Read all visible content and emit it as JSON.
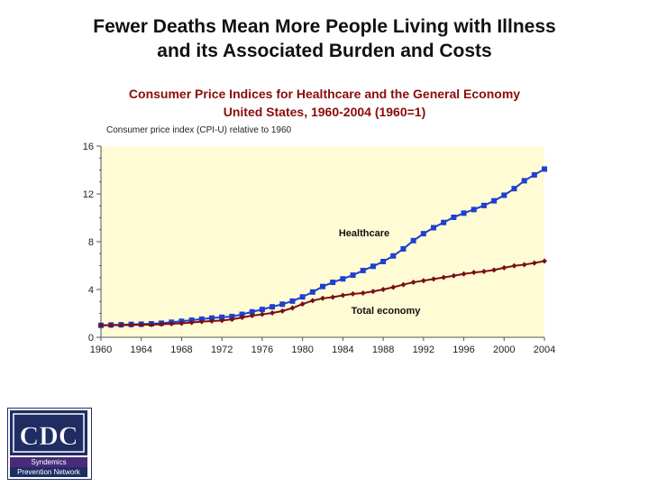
{
  "slide": {
    "title_line1": "Fewer Deaths Mean More People Living with Illness",
    "title_line2": "and its Associated Burden and Costs"
  },
  "chart_data": {
    "type": "line",
    "title_line1": "Consumer Price Indices for Healthcare and the General Economy",
    "title_line2": "United States, 1960-2004 (1960=1)",
    "ylabel": "Consumer price index (CPI-U) relative to 1960",
    "xlabel": "",
    "xlim": [
      1960,
      2004
    ],
    "ylim": [
      0,
      16
    ],
    "yticks": [
      0,
      4,
      8,
      12,
      16
    ],
    "xticks": [
      1960,
      1964,
      1968,
      1972,
      1976,
      1980,
      1984,
      1988,
      1992,
      1996,
      2000,
      2004
    ],
    "x": [
      1960,
      1961,
      1962,
      1963,
      1964,
      1965,
      1966,
      1967,
      1968,
      1969,
      1970,
      1971,
      1972,
      1973,
      1974,
      1975,
      1976,
      1977,
      1978,
      1979,
      1980,
      1981,
      1982,
      1983,
      1984,
      1985,
      1986,
      1987,
      1988,
      1989,
      1990,
      1991,
      1992,
      1993,
      1994,
      1995,
      1996,
      1997,
      1998,
      1999,
      2000,
      2001,
      2002,
      2003,
      2004
    ],
    "series": [
      {
        "name": "Healthcare",
        "color": "#1f3fcf",
        "values": [
          1.0,
          1.03,
          1.05,
          1.08,
          1.1,
          1.13,
          1.18,
          1.26,
          1.34,
          1.43,
          1.52,
          1.61,
          1.68,
          1.74,
          1.92,
          2.13,
          2.33,
          2.55,
          2.77,
          3.03,
          3.38,
          3.79,
          4.25,
          4.6,
          4.89,
          5.2,
          5.59,
          5.94,
          6.34,
          6.81,
          7.4,
          8.09,
          8.67,
          9.17,
          9.61,
          10.04,
          10.39,
          10.69,
          11.03,
          11.42,
          11.89,
          12.44,
          13.1,
          13.59,
          14.08
        ]
      },
      {
        "name": "Total economy",
        "color": "#7a0e16",
        "values": [
          1.0,
          1.01,
          1.02,
          1.03,
          1.05,
          1.06,
          1.09,
          1.13,
          1.17,
          1.24,
          1.31,
          1.36,
          1.41,
          1.5,
          1.66,
          1.81,
          1.92,
          2.04,
          2.2,
          2.45,
          2.78,
          3.07,
          3.26,
          3.36,
          3.51,
          3.63,
          3.7,
          3.84,
          4.0,
          4.19,
          4.41,
          4.6,
          4.74,
          4.88,
          5.01,
          5.15,
          5.3,
          5.42,
          5.51,
          5.63,
          5.82,
          5.98,
          6.08,
          6.22,
          6.38
        ]
      }
    ],
    "annotations": [
      "Healthcare",
      "Total economy"
    ],
    "plot_background": "#fffbd5"
  },
  "logo": {
    "text": "CDC",
    "line1": "Syndemics",
    "line2": "Prevention Network"
  }
}
